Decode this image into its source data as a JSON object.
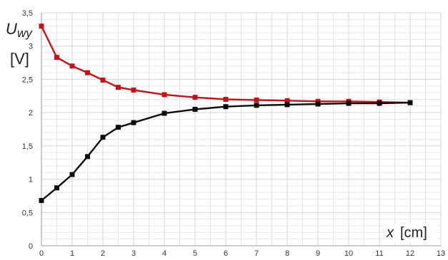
{
  "chart_data": {
    "type": "line",
    "ylabel_main": "U",
    "ylabel_sub": "wy",
    "ylabel_unit": "[V]",
    "xlabel_var": "x",
    "xlabel_unit": "[cm]",
    "xlim": [
      0,
      13
    ],
    "ylim": [
      0,
      3.5
    ],
    "xticks": [
      "0",
      "1",
      "2",
      "3",
      "4",
      "5",
      "6",
      "7",
      "8",
      "9",
      "10",
      "11",
      "12",
      "13"
    ],
    "yticks": [
      "0",
      "0,5",
      "1",
      "1,5",
      "2",
      "2,5",
      "3",
      "3,5"
    ],
    "grid": true,
    "series": [
      {
        "color": "#c0141c",
        "marker": "square",
        "points": [
          [
            0,
            3.3
          ],
          [
            0.5,
            2.83
          ],
          [
            1,
            2.7
          ],
          [
            1.5,
            2.6
          ],
          [
            2,
            2.49
          ],
          [
            2.5,
            2.38
          ],
          [
            3,
            2.34
          ],
          [
            4,
            2.27
          ],
          [
            5,
            2.23
          ],
          [
            6,
            2.2
          ],
          [
            7,
            2.19
          ],
          [
            8,
            2.18
          ],
          [
            9,
            2.17
          ],
          [
            10,
            2.17
          ],
          [
            11,
            2.16
          ],
          [
            12,
            2.15
          ]
        ]
      },
      {
        "color": "#0d0d0d",
        "marker": "square",
        "points": [
          [
            0,
            0.68
          ],
          [
            0.5,
            0.87
          ],
          [
            1,
            1.07
          ],
          [
            1.5,
            1.34
          ],
          [
            2,
            1.63
          ],
          [
            2.5,
            1.78
          ],
          [
            3,
            1.85
          ],
          [
            4,
            1.99
          ],
          [
            5,
            2.05
          ],
          [
            6,
            2.09
          ],
          [
            7,
            2.11
          ],
          [
            8,
            2.12
          ],
          [
            9,
            2.13
          ],
          [
            10,
            2.14
          ],
          [
            11,
            2.14
          ],
          [
            12,
            2.15
          ]
        ]
      }
    ]
  },
  "colors": {
    "grid": "#d4d4d4",
    "grid_minor": "#e6e6e6"
  }
}
